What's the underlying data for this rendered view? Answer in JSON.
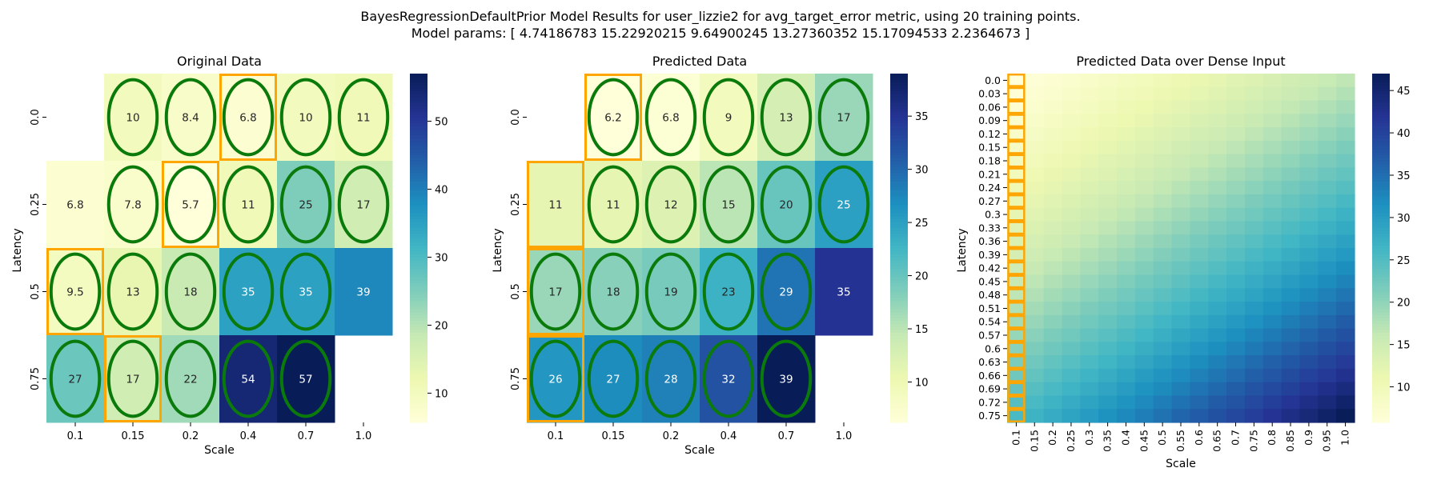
{
  "figure": {
    "title_line1": "BayesRegressionDefaultPrior Model Results for user_lizzie2 for avg_target_error metric, using 20 training points.",
    "title_line2": "Model params: [ 4.74186783 15.22920215  9.64900245 13.27360352 15.17094533  2.2364673 ]"
  },
  "colors": {
    "highlight_ellipse": "#0a7a0a",
    "highlight_box": "#ffa500"
  },
  "chart_data": [
    {
      "type": "heatmap",
      "title": "Original Data",
      "xlabel": "Scale",
      "ylabel": "Latency",
      "x_categories": [
        "0.1",
        "0.15",
        "0.2",
        "0.4",
        "0.7",
        "1.0"
      ],
      "y_categories": [
        "0.0",
        "0.25",
        "0.5",
        "0.75"
      ],
      "values": [
        [
          null,
          10,
          8.4,
          6.8,
          10,
          11
        ],
        [
          6.8,
          7.8,
          5.7,
          11,
          25,
          17
        ],
        [
          9.5,
          13,
          18,
          35,
          35,
          39
        ],
        [
          27,
          17,
          22,
          54,
          57,
          null
        ]
      ],
      "ellipses": [
        [
          false,
          true,
          true,
          true,
          true,
          true
        ],
        [
          false,
          true,
          true,
          true,
          true,
          true
        ],
        [
          true,
          true,
          true,
          true,
          true,
          false
        ],
        [
          true,
          true,
          true,
          true,
          true,
          false
        ]
      ],
      "boxes": [
        [
          0,
          3
        ],
        [
          1,
          2
        ],
        [
          2,
          0
        ],
        [
          3,
          1
        ]
      ],
      "colorbar": {
        "min": 5.7,
        "max": 57,
        "ticks": [
          10,
          20,
          30,
          40,
          50
        ],
        "colormap": "YlGnBu"
      }
    },
    {
      "type": "heatmap",
      "title": "Predicted Data",
      "xlabel": "Scale",
      "ylabel": "Latency",
      "x_categories": [
        "0.1",
        "0.15",
        "0.2",
        "0.4",
        "0.7",
        "1.0"
      ],
      "y_categories": [
        "0.0",
        "0.25",
        "0.5",
        "0.75"
      ],
      "values": [
        [
          null,
          6.2,
          6.8,
          9,
          13,
          17
        ],
        [
          11,
          11,
          12,
          15,
          20,
          25
        ],
        [
          17,
          18,
          19,
          23,
          29,
          35
        ],
        [
          26,
          27,
          28,
          32,
          39,
          null
        ]
      ],
      "ellipses": [
        [
          false,
          true,
          true,
          true,
          true,
          true
        ],
        [
          false,
          true,
          true,
          true,
          true,
          true
        ],
        [
          true,
          true,
          true,
          true,
          true,
          false
        ],
        [
          true,
          true,
          true,
          true,
          true,
          false
        ]
      ],
      "boxes": [
        [
          0,
          1
        ],
        [
          1,
          0
        ],
        [
          2,
          0
        ],
        [
          3,
          0
        ]
      ],
      "colorbar": {
        "min": 6.2,
        "max": 39,
        "ticks": [
          10,
          15,
          20,
          25,
          30,
          35
        ],
        "colormap": "YlGnBu"
      }
    },
    {
      "type": "heatmap",
      "title": "Predicted Data over Dense Input",
      "xlabel": "Scale",
      "ylabel": "Latency",
      "x_ticks": [
        "0.1",
        "0.15",
        "0.2",
        "0.25",
        "0.3",
        "0.35",
        "0.4",
        "0.45",
        "0.5",
        "0.55",
        "0.6",
        "0.65",
        "0.7",
        "0.75",
        "0.8",
        "0.85",
        "0.9",
        "0.95",
        "1.0"
      ],
      "y_ticks": [
        "0.0",
        "0.03",
        "0.06",
        "0.09",
        "0.12",
        "0.15",
        "0.18",
        "0.21",
        "0.24",
        "0.27",
        "0.3",
        "0.33",
        "0.36",
        "0.39",
        "0.42",
        "0.45",
        "0.48",
        "0.51",
        "0.54",
        "0.57",
        "0.6",
        "0.63",
        "0.66",
        "0.69",
        "0.72",
        "0.75"
      ],
      "model": {
        "form": "quadratic",
        "params": [
          4.74186783,
          15.22920215,
          9.64900245,
          13.27360352,
          15.17094533,
          2.2364673
        ]
      },
      "highlight_column": "0.1",
      "colorbar": {
        "min": 5.8,
        "max": 47,
        "ticks": [
          10,
          15,
          20,
          25,
          30,
          35,
          40,
          45
        ],
        "colormap": "YlGnBu"
      }
    }
  ]
}
